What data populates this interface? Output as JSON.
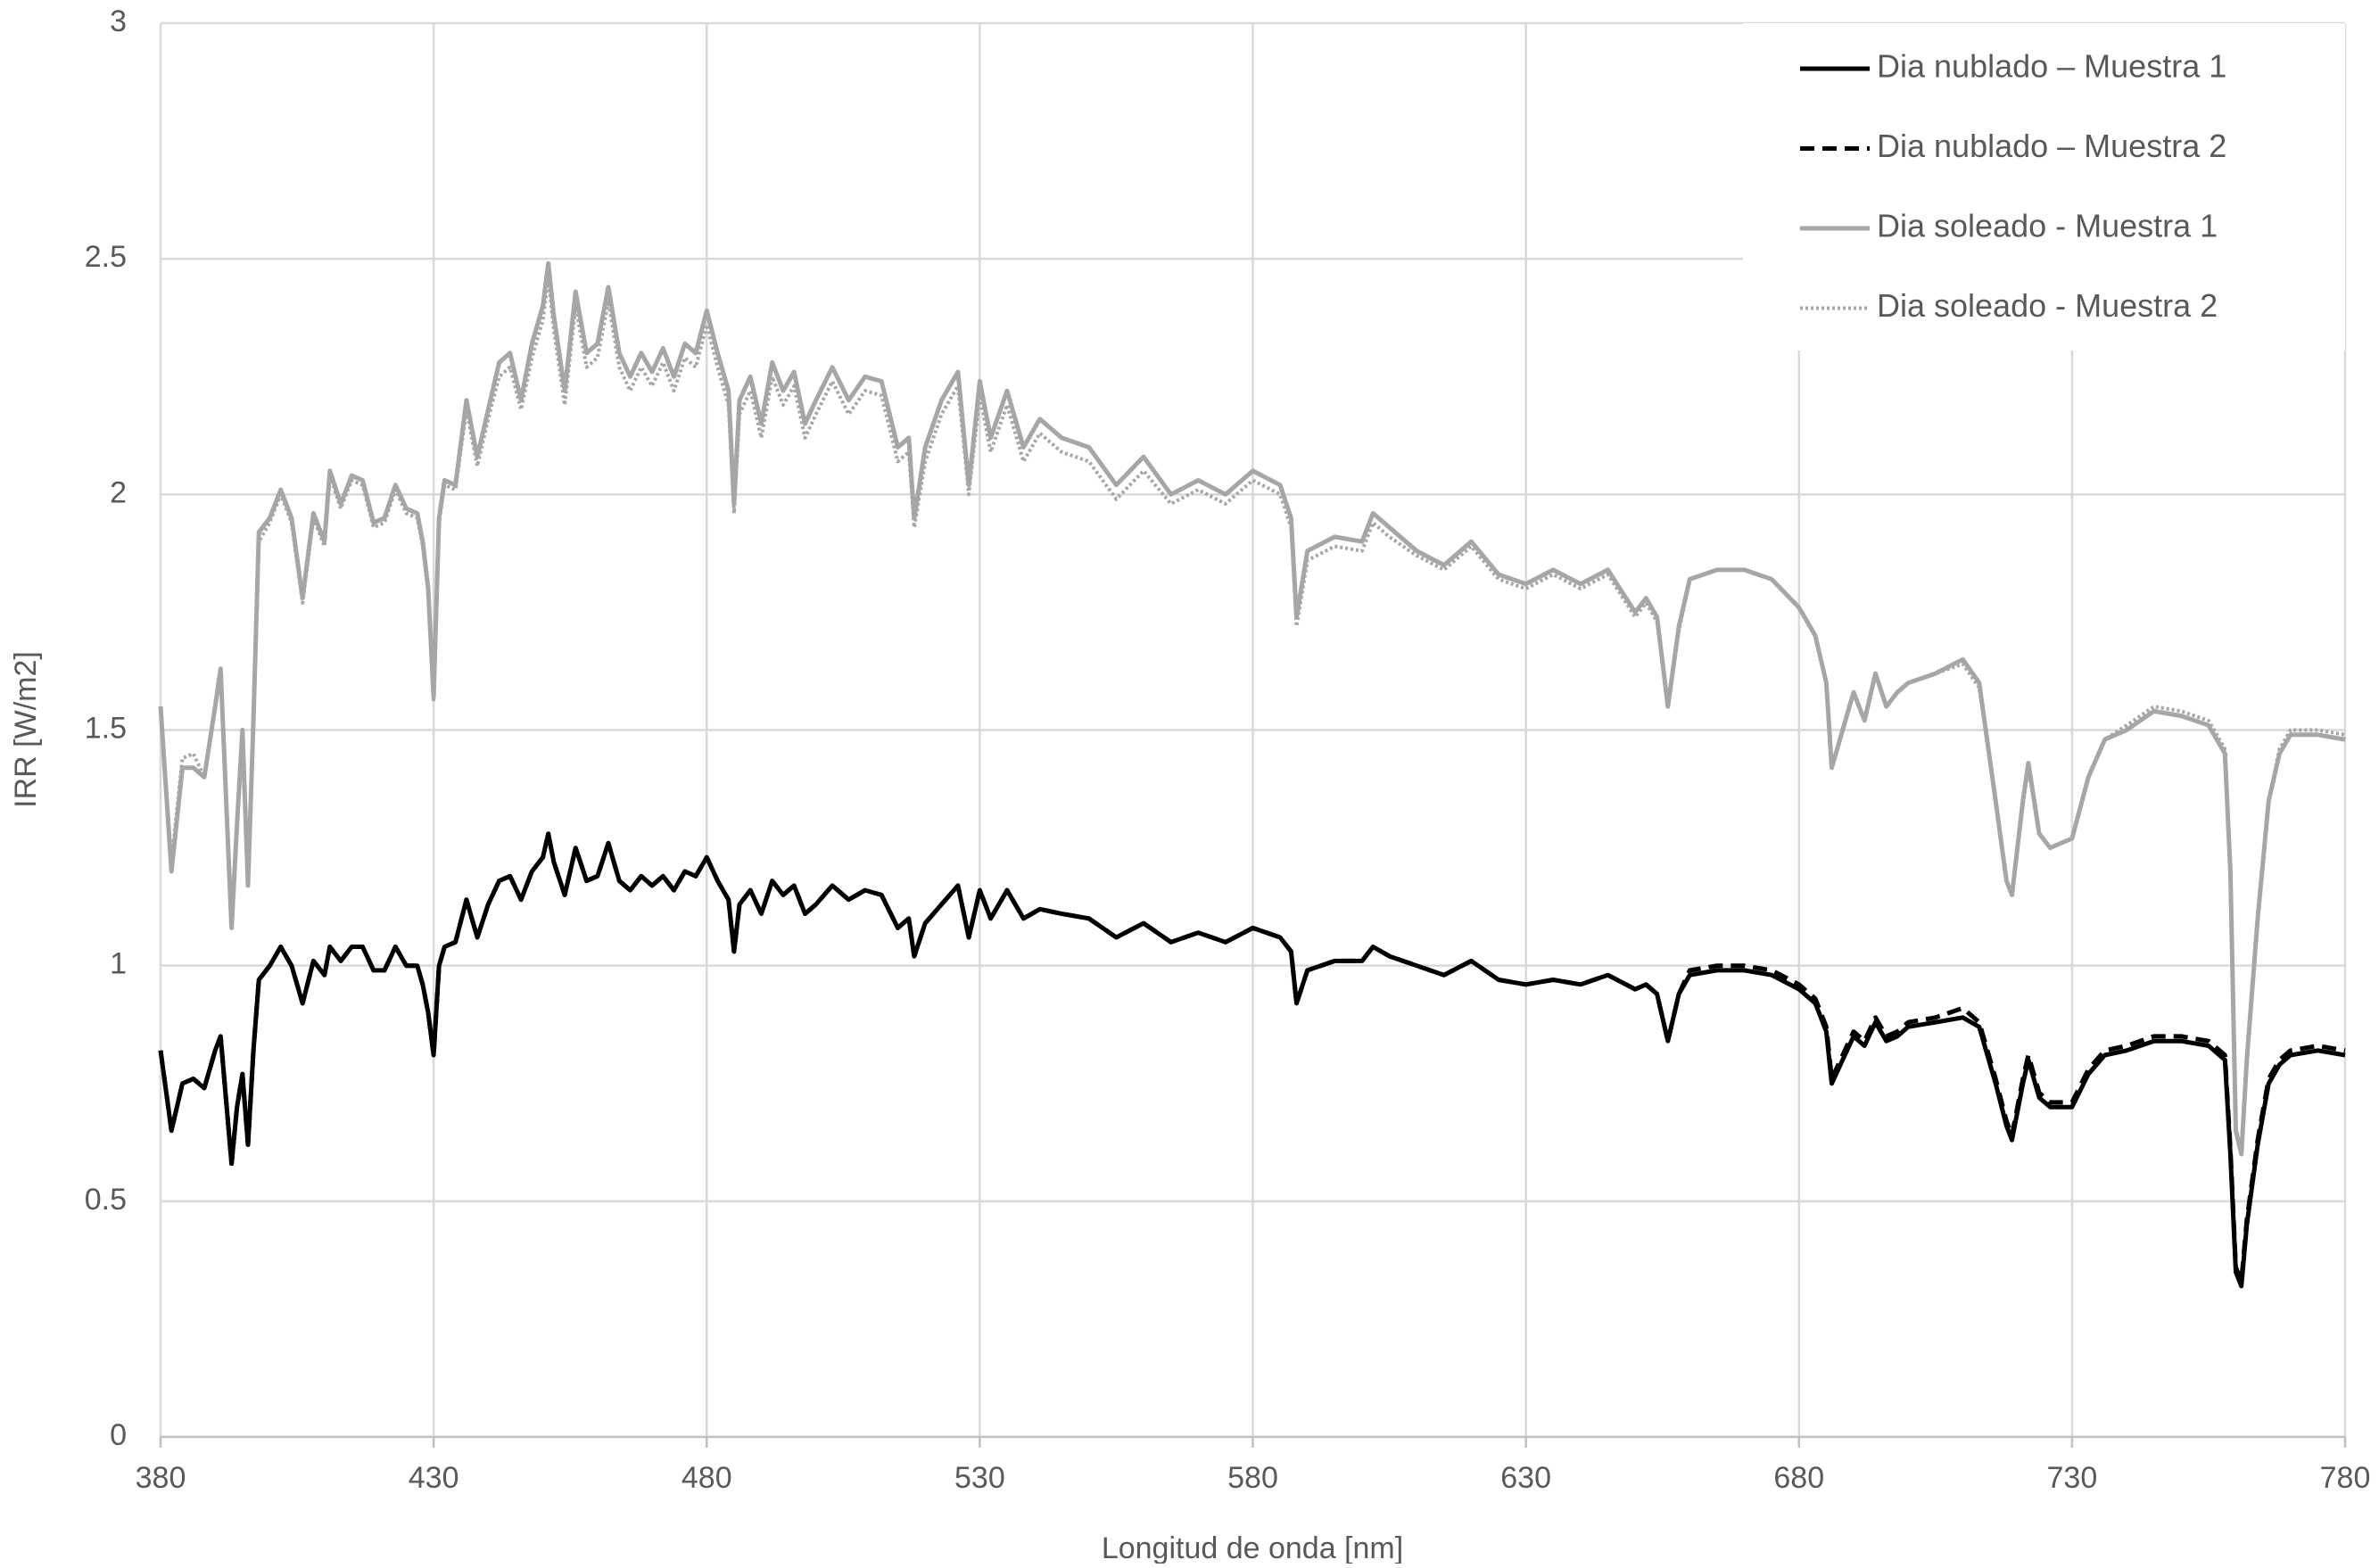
{
  "chart_data": {
    "type": "line",
    "x_label": "Longitud de onda [nm]",
    "y_label": "IRR [W/m2]",
    "xlim": [
      380,
      780
    ],
    "xticks": [
      380,
      430,
      480,
      530,
      580,
      630,
      680,
      730,
      780
    ],
    "ylim": [
      0,
      3
    ],
    "yticks": [
      0,
      0.5,
      1,
      1.5,
      2,
      2.5,
      3
    ],
    "grid": true,
    "legend_position": "top-right",
    "x": [
      380,
      382,
      384,
      386,
      388,
      390,
      391,
      393,
      394,
      395,
      396,
      397,
      398,
      400,
      402,
      404,
      406,
      408,
      410,
      411,
      413,
      415,
      417,
      419,
      421,
      423,
      425,
      427,
      428,
      429,
      430,
      431,
      432,
      434,
      436,
      438,
      440,
      442,
      444,
      446,
      448,
      450,
      451,
      452,
      454,
      456,
      458,
      460,
      462,
      464,
      466,
      468,
      470,
      472,
      474,
      476,
      478,
      480,
      482,
      484,
      485,
      486,
      488,
      490,
      492,
      494,
      496,
      498,
      500,
      503,
      506,
      509,
      512,
      515,
      517,
      518,
      520,
      523,
      526,
      528,
      530,
      532,
      535,
      538,
      541,
      545,
      550,
      555,
      560,
      565,
      570,
      575,
      580,
      585,
      587,
      588,
      590,
      595,
      600,
      602,
      605,
      610,
      615,
      620,
      625,
      630,
      635,
      640,
      645,
      650,
      652,
      654,
      656,
      658,
      660,
      665,
      670,
      675,
      680,
      683,
      685,
      686,
      688,
      690,
      692,
      694,
      696,
      698,
      700,
      705,
      710,
      713,
      716,
      718,
      719,
      721,
      722,
      724,
      726,
      730,
      733,
      736,
      740,
      745,
      750,
      755,
      758,
      759,
      760,
      761,
      762,
      764,
      766,
      768,
      770,
      775,
      780
    ],
    "series": [
      {
        "name": "Dia nublado – Muestra 1",
        "color": "#000000",
        "style": "solid",
        "values": [
          0.82,
          0.65,
          0.75,
          0.76,
          0.74,
          0.82,
          0.85,
          0.58,
          0.7,
          0.77,
          0.62,
          0.82,
          0.97,
          1.0,
          1.04,
          1.0,
          0.92,
          1.01,
          0.98,
          1.04,
          1.01,
          1.04,
          1.04,
          0.99,
          0.99,
          1.04,
          1.0,
          1.0,
          0.96,
          0.9,
          0.81,
          1.0,
          1.04,
          1.05,
          1.14,
          1.06,
          1.13,
          1.18,
          1.19,
          1.14,
          1.2,
          1.23,
          1.28,
          1.22,
          1.15,
          1.25,
          1.18,
          1.19,
          1.26,
          1.18,
          1.16,
          1.19,
          1.17,
          1.19,
          1.16,
          1.2,
          1.19,
          1.23,
          1.18,
          1.14,
          1.03,
          1.13,
          1.16,
          1.11,
          1.18,
          1.15,
          1.17,
          1.11,
          1.13,
          1.17,
          1.14,
          1.16,
          1.15,
          1.08,
          1.1,
          1.02,
          1.09,
          1.13,
          1.17,
          1.06,
          1.16,
          1.1,
          1.16,
          1.1,
          1.12,
          1.11,
          1.1,
          1.06,
          1.09,
          1.05,
          1.07,
          1.05,
          1.08,
          1.06,
          1.03,
          0.92,
          0.99,
          1.01,
          1.01,
          1.04,
          1.02,
          1.0,
          0.98,
          1.01,
          0.97,
          0.96,
          0.97,
          0.96,
          0.98,
          0.95,
          0.96,
          0.94,
          0.84,
          0.94,
          0.98,
          0.99,
          0.99,
          0.98,
          0.95,
          0.92,
          0.86,
          0.75,
          0.8,
          0.85,
          0.83,
          0.88,
          0.84,
          0.85,
          0.87,
          0.88,
          0.89,
          0.87,
          0.75,
          0.66,
          0.63,
          0.75,
          0.8,
          0.72,
          0.7,
          0.7,
          0.77,
          0.81,
          0.82,
          0.84,
          0.84,
          0.83,
          0.8,
          0.6,
          0.35,
          0.32,
          0.45,
          0.62,
          0.75,
          0.79,
          0.81,
          0.82,
          0.81
        ]
      },
      {
        "name": "Dia nublado – Muestra 2",
        "color": "#000000",
        "style": "dashed",
        "values": [
          0.82,
          0.65,
          0.75,
          0.76,
          0.74,
          0.82,
          0.85,
          0.58,
          0.7,
          0.77,
          0.62,
          0.82,
          0.97,
          1.0,
          1.04,
          1.0,
          0.92,
          1.01,
          0.98,
          1.04,
          1.01,
          1.04,
          1.04,
          0.99,
          0.99,
          1.04,
          1.0,
          1.0,
          0.96,
          0.9,
          0.81,
          1.0,
          1.04,
          1.05,
          1.14,
          1.06,
          1.13,
          1.18,
          1.19,
          1.14,
          1.2,
          1.23,
          1.28,
          1.22,
          1.15,
          1.25,
          1.18,
          1.19,
          1.26,
          1.18,
          1.16,
          1.19,
          1.17,
          1.19,
          1.16,
          1.2,
          1.19,
          1.23,
          1.18,
          1.14,
          1.03,
          1.13,
          1.16,
          1.11,
          1.18,
          1.15,
          1.17,
          1.11,
          1.13,
          1.17,
          1.14,
          1.16,
          1.15,
          1.08,
          1.1,
          1.02,
          1.09,
          1.13,
          1.17,
          1.06,
          1.16,
          1.1,
          1.16,
          1.1,
          1.12,
          1.11,
          1.1,
          1.06,
          1.09,
          1.05,
          1.07,
          1.05,
          1.08,
          1.06,
          1.03,
          0.92,
          0.99,
          1.01,
          1.01,
          1.04,
          1.02,
          1.0,
          0.98,
          1.01,
          0.97,
          0.96,
          0.97,
          0.96,
          0.98,
          0.95,
          0.96,
          0.94,
          0.84,
          0.94,
          0.99,
          1.0,
          1.0,
          0.99,
          0.96,
          0.93,
          0.87,
          0.76,
          0.81,
          0.86,
          0.84,
          0.89,
          0.85,
          0.86,
          0.88,
          0.89,
          0.91,
          0.88,
          0.76,
          0.67,
          0.64,
          0.76,
          0.81,
          0.73,
          0.71,
          0.71,
          0.78,
          0.82,
          0.83,
          0.85,
          0.85,
          0.84,
          0.81,
          0.61,
          0.36,
          0.33,
          0.46,
          0.63,
          0.76,
          0.8,
          0.82,
          0.83,
          0.82
        ]
      },
      {
        "name": "Dia soleado - Muestra 1",
        "color": "#a6a6a6",
        "style": "solid",
        "values": [
          1.55,
          1.2,
          1.42,
          1.42,
          1.4,
          1.55,
          1.63,
          1.08,
          1.3,
          1.5,
          1.17,
          1.52,
          1.92,
          1.95,
          2.01,
          1.95,
          1.78,
          1.96,
          1.9,
          2.05,
          1.98,
          2.04,
          2.03,
          1.94,
          1.95,
          2.02,
          1.97,
          1.96,
          1.9,
          1.8,
          1.57,
          1.95,
          2.03,
          2.02,
          2.2,
          2.08,
          2.18,
          2.28,
          2.3,
          2.2,
          2.32,
          2.4,
          2.49,
          2.38,
          2.22,
          2.43,
          2.3,
          2.32,
          2.44,
          2.3,
          2.25,
          2.3,
          2.26,
          2.31,
          2.25,
          2.32,
          2.3,
          2.39,
          2.3,
          2.22,
          1.98,
          2.2,
          2.25,
          2.15,
          2.28,
          2.22,
          2.26,
          2.15,
          2.2,
          2.27,
          2.2,
          2.25,
          2.24,
          2.1,
          2.12,
          1.95,
          2.1,
          2.2,
          2.26,
          2.02,
          2.24,
          2.12,
          2.22,
          2.1,
          2.16,
          2.12,
          2.1,
          2.02,
          2.08,
          2.0,
          2.03,
          2.0,
          2.05,
          2.02,
          1.95,
          1.74,
          1.88,
          1.91,
          1.9,
          1.96,
          1.93,
          1.88,
          1.85,
          1.9,
          1.83,
          1.81,
          1.84,
          1.81,
          1.84,
          1.75,
          1.78,
          1.74,
          1.55,
          1.72,
          1.82,
          1.84,
          1.84,
          1.82,
          1.76,
          1.7,
          1.6,
          1.42,
          1.5,
          1.58,
          1.52,
          1.62,
          1.55,
          1.58,
          1.6,
          1.62,
          1.65,
          1.6,
          1.35,
          1.18,
          1.15,
          1.35,
          1.43,
          1.28,
          1.25,
          1.27,
          1.4,
          1.48,
          1.5,
          1.54,
          1.53,
          1.51,
          1.45,
          1.2,
          0.65,
          0.6,
          0.8,
          1.1,
          1.35,
          1.45,
          1.49,
          1.49,
          1.48
        ]
      },
      {
        "name": "Dia soleado - Muestra 2",
        "color": "#a6a6a6",
        "style": "dotted",
        "values": [
          1.54,
          1.22,
          1.44,
          1.45,
          1.4,
          1.55,
          1.62,
          1.1,
          1.3,
          1.48,
          1.18,
          1.5,
          1.9,
          1.94,
          2.0,
          1.94,
          1.77,
          1.95,
          1.89,
          2.04,
          1.97,
          2.03,
          2.02,
          1.93,
          1.94,
          2.01,
          1.96,
          1.95,
          1.89,
          1.79,
          1.56,
          1.94,
          2.02,
          2.01,
          2.18,
          2.06,
          2.16,
          2.25,
          2.27,
          2.18,
          2.29,
          2.37,
          2.46,
          2.35,
          2.19,
          2.4,
          2.27,
          2.29,
          2.41,
          2.27,
          2.22,
          2.27,
          2.23,
          2.28,
          2.22,
          2.29,
          2.27,
          2.36,
          2.27,
          2.19,
          1.96,
          2.17,
          2.22,
          2.12,
          2.25,
          2.19,
          2.23,
          2.12,
          2.17,
          2.24,
          2.17,
          2.22,
          2.21,
          2.07,
          2.09,
          1.93,
          2.07,
          2.17,
          2.23,
          2.0,
          2.21,
          2.09,
          2.19,
          2.07,
          2.13,
          2.09,
          2.07,
          1.99,
          2.05,
          1.98,
          2.01,
          1.98,
          2.03,
          2.0,
          1.93,
          1.72,
          1.86,
          1.89,
          1.88,
          1.94,
          1.91,
          1.87,
          1.84,
          1.89,
          1.82,
          1.8,
          1.83,
          1.8,
          1.83,
          1.74,
          1.77,
          1.73,
          1.55,
          1.71,
          1.82,
          1.84,
          1.84,
          1.82,
          1.76,
          1.7,
          1.6,
          1.42,
          1.5,
          1.58,
          1.52,
          1.62,
          1.55,
          1.58,
          1.6,
          1.62,
          1.64,
          1.59,
          1.35,
          1.18,
          1.15,
          1.34,
          1.42,
          1.28,
          1.25,
          1.27,
          1.4,
          1.48,
          1.51,
          1.55,
          1.54,
          1.52,
          1.46,
          1.2,
          0.65,
          0.6,
          0.8,
          1.1,
          1.35,
          1.46,
          1.5,
          1.5,
          1.49
        ]
      }
    ]
  }
}
